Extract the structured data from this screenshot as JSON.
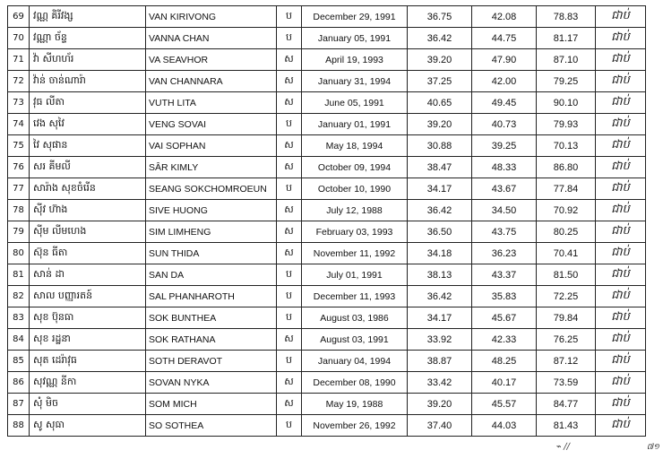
{
  "rows": [
    {
      "no": "69",
      "kh_name": "វណ្ណ គិរីវង្ស",
      "latin": "VAN KIRIVONG",
      "sex": "ប",
      "dob": "December 29, 1991",
      "s1": "36.75",
      "s2": "42.08",
      "total": "78.83",
      "result": "ជាប់"
    },
    {
      "no": "70",
      "kh_name": "វណ្ណា ច័ន្ទ",
      "latin": "VANNA CHAN",
      "sex": "ប",
      "dob": "January 05, 1991",
      "s1": "36.42",
      "s2": "44.75",
      "total": "81.17",
      "result": "ជាប់"
    },
    {
      "no": "71",
      "kh_name": "វ៉ា សីហហ័រ",
      "latin": "VA SEAVHOR",
      "sex": "ស",
      "dob": "April 19, 1993",
      "s1": "39.20",
      "s2": "47.90",
      "total": "87.10",
      "result": "ជាប់"
    },
    {
      "no": "72",
      "kh_name": "វ៉ាន់ ចាន់ណារ៉ា",
      "latin": "VAN CHANNARA",
      "sex": "ស",
      "dob": "January 31, 1994",
      "s1": "37.25",
      "s2": "42.00",
      "total": "79.25",
      "result": "ជាប់"
    },
    {
      "no": "73",
      "kh_name": "វុធ លីតា",
      "latin": "VUTH LITA",
      "sex": "ស",
      "dob": "June 05, 1991",
      "s1": "40.65",
      "s2": "49.45",
      "total": "90.10",
      "result": "ជាប់"
    },
    {
      "no": "74",
      "kh_name": "វេង សុវៃ",
      "latin": "VENG SOVAI",
      "sex": "ប",
      "dob": "January 01, 1991",
      "s1": "39.20",
      "s2": "40.73",
      "total": "79.93",
      "result": "ជាប់"
    },
    {
      "no": "75",
      "kh_name": "វៃ សុផាន",
      "latin": "VAI SOPHAN",
      "sex": "ស",
      "dob": "May 18, 1994",
      "s1": "30.88",
      "s2": "39.25",
      "total": "70.13",
      "result": "ជាប់"
    },
    {
      "no": "76",
      "kh_name": "សរ គីមលី",
      "latin": "SÂR KIMLY",
      "sex": "ស",
      "dob": "October 09, 1994",
      "s1": "38.47",
      "s2": "48.33",
      "total": "86.80",
      "result": "ជាប់"
    },
    {
      "no": "77",
      "kh_name": "សារ៉ាង សុខចំរើន",
      "latin": "SEANG SOKCHOMROEUN",
      "sex": "ប",
      "dob": "October 10, 1990",
      "s1": "34.17",
      "s2": "43.67",
      "total": "77.84",
      "result": "ជាប់"
    },
    {
      "no": "78",
      "kh_name": "ស៊ីវ ហ៊ាង",
      "latin": "SIVE HUONG",
      "sex": "ស",
      "dob": "July 12, 1988",
      "s1": "36.42",
      "s2": "34.50",
      "total": "70.92",
      "result": "ជាប់"
    },
    {
      "no": "79",
      "kh_name": "ស៊ីម លីមហេង",
      "latin": "SIM LIMHENG",
      "sex": "ស",
      "dob": "February 03, 1993",
      "s1": "36.50",
      "s2": "43.75",
      "total": "80.25",
      "result": "ជាប់"
    },
    {
      "no": "80",
      "kh_name": "ស៊ុន ធីតា",
      "latin": "SUN THIDA",
      "sex": "ស",
      "dob": "November 11, 1992",
      "s1": "34.18",
      "s2": "36.23",
      "total": "70.41",
      "result": "ជាប់"
    },
    {
      "no": "81",
      "kh_name": "សាន់ ដា",
      "latin": "SAN DA",
      "sex": "ប",
      "dob": "July 01, 1991",
      "s1": "38.13",
      "s2": "43.37",
      "total": "81.50",
      "result": "ជាប់"
    },
    {
      "no": "82",
      "kh_name": "សាល បញ្ញារតន៍",
      "latin": "SAL PHANHAROTH",
      "sex": "ប",
      "dob": "December 11, 1993",
      "s1": "36.42",
      "s2": "35.83",
      "total": "72.25",
      "result": "ជាប់"
    },
    {
      "no": "83",
      "kh_name": "សុខ ប៊ុនធា",
      "latin": "SOK BUNTHEA",
      "sex": "ប",
      "dob": "August 03, 1986",
      "s1": "34.17",
      "s2": "45.67",
      "total": "79.84",
      "result": "ជាប់"
    },
    {
      "no": "84",
      "kh_name": "សុខ រដ្ឋនា",
      "latin": "SOK RATHANA",
      "sex": "ស",
      "dob": "August 03, 1991",
      "s1": "33.92",
      "s2": "42.33",
      "total": "76.25",
      "result": "ជាប់"
    },
    {
      "no": "85",
      "kh_name": "សុត ដេរ៉ាវុធ",
      "latin": "SOTH DERAVOT",
      "sex": "ប",
      "dob": "January 04, 1994",
      "s1": "38.87",
      "s2": "48.25",
      "total": "87.12",
      "result": "ជាប់"
    },
    {
      "no": "86",
      "kh_name": "សុវណ្ណ នីកា",
      "latin": "SOVAN NYKA",
      "sex": "ស",
      "dob": "December 08, 1990",
      "s1": "33.42",
      "s2": "40.17",
      "total": "73.59",
      "result": "ជាប់"
    },
    {
      "no": "87",
      "kh_name": "សុំ មិច",
      "latin": "SOM MICH",
      "sex": "ស",
      "dob": "May 19, 1988",
      "s1": "39.20",
      "s2": "45.57",
      "total": "84.77",
      "result": "ជាប់"
    },
    {
      "no": "88",
      "kh_name": "សូ សុធា",
      "latin": "SO SOTHEA",
      "sex": "ប",
      "dob": "November 26, 1992",
      "s1": "37.40",
      "s2": "44.03",
      "total": "81.43",
      "result": "ជាប់"
    }
  ],
  "page_mark": "៧១"
}
